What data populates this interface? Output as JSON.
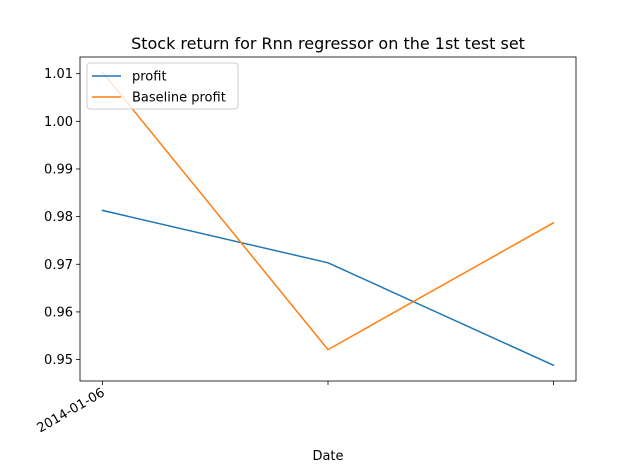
{
  "chart_data": {
    "type": "line",
    "title": "Stock return for Rnn regressor on the 1st test set",
    "xlabel": "Date",
    "ylabel": "",
    "x": [
      0,
      1,
      2
    ],
    "x_tick_labels": [
      "2014-01-06",
      "",
      ""
    ],
    "xlim": [
      -0.1,
      2.1
    ],
    "ylim": [
      0.9455,
      1.0135
    ],
    "y_ticks": [
      0.95,
      0.96,
      0.97,
      0.98,
      0.99,
      1.0,
      1.01
    ],
    "y_tick_labels": [
      "0.95",
      "0.96",
      "0.97",
      "0.98",
      "0.99",
      "1.00",
      "1.01"
    ],
    "grid": false,
    "legend_position": "upper-left",
    "series": [
      {
        "name": "profit",
        "color": "#1f77b4",
        "values": [
          0.9813,
          0.9703,
          0.9488
        ]
      },
      {
        "name": "Baseline profit",
        "color": "#ff7f0e",
        "values": [
          1.0103,
          0.9521,
          0.9787
        ]
      }
    ]
  }
}
